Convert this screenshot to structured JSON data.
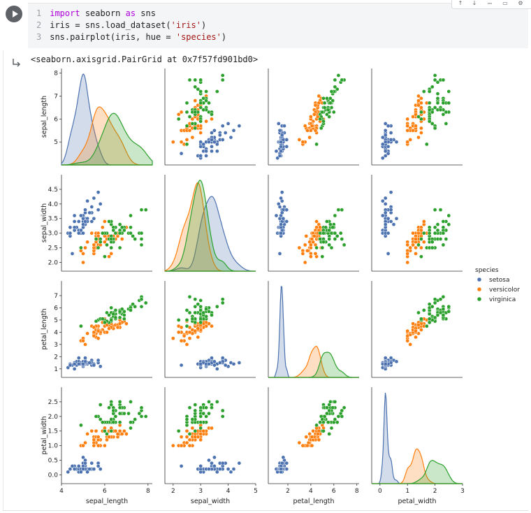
{
  "code": {
    "lines": [
      {
        "num": "1",
        "parts": [
          {
            "t": "import",
            "c": "kw"
          },
          {
            "t": " seaborn ",
            "c": ""
          },
          {
            "t": "as",
            "c": "kw"
          },
          {
            "t": " sns",
            "c": ""
          }
        ]
      },
      {
        "num": "2",
        "parts": [
          {
            "t": "iris = sns.load_dataset(",
            "c": ""
          },
          {
            "t": "'iris'",
            "c": "str"
          },
          {
            "t": ")",
            "c": ""
          }
        ]
      },
      {
        "num": "3",
        "parts": [
          {
            "t": "sns.pairplot(iris, hue = ",
            "c": ""
          },
          {
            "t": "'species'",
            "c": "str"
          },
          {
            "t": ")",
            "c": ""
          }
        ]
      }
    ]
  },
  "output": {
    "repr": "<seaborn.axisgrid.PairGrid at 0x7f57fd901bd0>"
  },
  "icons": {
    "run": "play-icon",
    "output": "output-arrow-icon",
    "toolbar": [
      "arrow-up-icon",
      "arrow-down-icon",
      "link-icon",
      "comment-icon",
      "settings-icon"
    ]
  },
  "chart_data": {
    "type": "scatter",
    "kind": "pairplot",
    "variables": [
      "sepal_length",
      "sepal_width",
      "petal_length",
      "petal_width"
    ],
    "diagonal": "kde",
    "legend": {
      "title": "species",
      "placement": "right",
      "entries": [
        "setosa",
        "versicolor",
        "virginica"
      ]
    },
    "colors": {
      "setosa": "#4c72b0",
      "versicolor": "#ff7f0e",
      "virginica": "#2ca02c"
    },
    "axes": {
      "sepal_length": {
        "ticks": [
          4,
          6,
          8
        ],
        "ylim_ticks": [
          5,
          6,
          7,
          8
        ],
        "range": [
          4.0,
          8.2
        ]
      },
      "sepal_width": {
        "ticks": [
          2,
          3,
          4,
          5
        ],
        "ylim_ticks": [
          2.0,
          2.5,
          3.0,
          3.5,
          4.0,
          4.5
        ],
        "range": [
          1.7,
          5.0
        ]
      },
      "petal_length": {
        "ticks": [
          2,
          4,
          6,
          8
        ],
        "ylim_ticks": [
          1,
          2,
          3,
          4,
          5,
          6,
          7
        ],
        "range": [
          0.3,
          8.2
        ]
      },
      "petal_width": {
        "ticks": [
          0,
          1,
          2,
          3
        ],
        "ylim_ticks": [
          0.0,
          0.5,
          1.0,
          1.5,
          2.0,
          2.5
        ],
        "range": [
          -0.3,
          3.0
        ]
      }
    },
    "ytick_labels": {
      "sepal_length": [
        "5",
        "6",
        "7",
        "8"
      ],
      "sepal_width": [
        "2.0",
        "2.5",
        "3.0",
        "3.5",
        "4.0",
        "4.5"
      ],
      "petal_length": [
        "1",
        "2",
        "3",
        "4",
        "5",
        "6",
        "7"
      ],
      "petal_width": [
        "0.0",
        "0.5",
        "1.0",
        "1.5",
        "2.0",
        "2.5"
      ]
    },
    "xtick_labels": {
      "sepal_length": [
        "4",
        "6",
        "8"
      ],
      "sepal_width": [
        "2",
        "3",
        "4",
        "5"
      ],
      "petal_length": [
        "2",
        "4",
        "6",
        "8"
      ],
      "petal_width": [
        "0",
        "1",
        "2",
        "3"
      ]
    },
    "series": [
      {
        "name": "setosa",
        "points": [
          [
            5.1,
            3.5,
            1.4,
            0.2
          ],
          [
            4.9,
            3.0,
            1.4,
            0.2
          ],
          [
            4.7,
            3.2,
            1.3,
            0.2
          ],
          [
            4.6,
            3.1,
            1.5,
            0.2
          ],
          [
            5.0,
            3.6,
            1.4,
            0.2
          ],
          [
            5.4,
            3.9,
            1.7,
            0.4
          ],
          [
            4.6,
            3.4,
            1.4,
            0.3
          ],
          [
            5.0,
            3.4,
            1.5,
            0.2
          ],
          [
            4.4,
            2.9,
            1.4,
            0.2
          ],
          [
            4.9,
            3.1,
            1.5,
            0.1
          ],
          [
            5.4,
            3.7,
            1.5,
            0.2
          ],
          [
            4.8,
            3.4,
            1.6,
            0.2
          ],
          [
            4.8,
            3.0,
            1.4,
            0.1
          ],
          [
            4.3,
            3.0,
            1.1,
            0.1
          ],
          [
            5.8,
            4.0,
            1.2,
            0.2
          ],
          [
            5.7,
            4.4,
            1.5,
            0.4
          ],
          [
            5.4,
            3.9,
            1.3,
            0.4
          ],
          [
            5.1,
            3.5,
            1.4,
            0.3
          ],
          [
            5.7,
            3.8,
            1.7,
            0.3
          ],
          [
            5.1,
            3.8,
            1.5,
            0.3
          ],
          [
            5.4,
            3.4,
            1.7,
            0.2
          ],
          [
            5.1,
            3.7,
            1.5,
            0.4
          ],
          [
            4.6,
            3.6,
            1.0,
            0.2
          ],
          [
            5.1,
            3.3,
            1.7,
            0.5
          ],
          [
            4.8,
            3.4,
            1.9,
            0.2
          ],
          [
            5.0,
            3.0,
            1.6,
            0.2
          ],
          [
            5.0,
            3.4,
            1.6,
            0.4
          ],
          [
            5.2,
            3.5,
            1.5,
            0.2
          ],
          [
            5.2,
            3.4,
            1.4,
            0.2
          ],
          [
            4.7,
            3.2,
            1.6,
            0.2
          ],
          [
            4.8,
            3.1,
            1.6,
            0.2
          ],
          [
            5.4,
            3.4,
            1.5,
            0.4
          ],
          [
            5.2,
            4.1,
            1.5,
            0.1
          ],
          [
            5.5,
            4.2,
            1.4,
            0.2
          ],
          [
            4.9,
            3.1,
            1.5,
            0.2
          ],
          [
            5.0,
            3.2,
            1.2,
            0.2
          ],
          [
            5.5,
            3.5,
            1.3,
            0.2
          ],
          [
            4.9,
            3.6,
            1.4,
            0.1
          ],
          [
            4.4,
            3.0,
            1.3,
            0.2
          ],
          [
            5.1,
            3.4,
            1.5,
            0.2
          ],
          [
            5.0,
            3.5,
            1.3,
            0.3
          ],
          [
            4.5,
            2.3,
            1.3,
            0.3
          ],
          [
            4.4,
            3.2,
            1.3,
            0.2
          ],
          [
            5.0,
            3.5,
            1.6,
            0.6
          ],
          [
            5.1,
            3.8,
            1.9,
            0.4
          ],
          [
            4.8,
            3.0,
            1.4,
            0.3
          ],
          [
            5.1,
            3.8,
            1.6,
            0.2
          ],
          [
            4.6,
            3.2,
            1.4,
            0.2
          ],
          [
            5.3,
            3.7,
            1.5,
            0.2
          ],
          [
            5.0,
            3.3,
            1.4,
            0.2
          ]
        ]
      },
      {
        "name": "versicolor",
        "points": [
          [
            7.0,
            3.2,
            4.7,
            1.4
          ],
          [
            6.4,
            3.2,
            4.5,
            1.5
          ],
          [
            6.9,
            3.1,
            4.9,
            1.5
          ],
          [
            5.5,
            2.3,
            4.0,
            1.3
          ],
          [
            6.5,
            2.8,
            4.6,
            1.5
          ],
          [
            5.7,
            2.8,
            4.5,
            1.3
          ],
          [
            6.3,
            3.3,
            4.7,
            1.6
          ],
          [
            4.9,
            2.4,
            3.3,
            1.0
          ],
          [
            6.6,
            2.9,
            4.6,
            1.3
          ],
          [
            5.2,
            2.7,
            3.9,
            1.4
          ],
          [
            5.0,
            2.0,
            3.5,
            1.0
          ],
          [
            5.9,
            3.0,
            4.2,
            1.5
          ],
          [
            6.0,
            2.2,
            4.0,
            1.0
          ],
          [
            6.1,
            2.9,
            4.7,
            1.4
          ],
          [
            5.6,
            2.9,
            3.6,
            1.3
          ],
          [
            6.7,
            3.1,
            4.4,
            1.4
          ],
          [
            5.6,
            3.0,
            4.5,
            1.5
          ],
          [
            5.8,
            2.7,
            4.1,
            1.0
          ],
          [
            6.2,
            2.2,
            4.5,
            1.5
          ],
          [
            5.6,
            2.5,
            3.9,
            1.1
          ],
          [
            5.9,
            3.2,
            4.8,
            1.8
          ],
          [
            6.1,
            2.8,
            4.0,
            1.3
          ],
          [
            6.3,
            2.5,
            4.9,
            1.5
          ],
          [
            6.1,
            2.8,
            4.7,
            1.2
          ],
          [
            6.4,
            2.9,
            4.3,
            1.3
          ],
          [
            6.6,
            3.0,
            4.4,
            1.4
          ],
          [
            6.8,
            2.8,
            4.8,
            1.4
          ],
          [
            6.7,
            3.0,
            5.0,
            1.7
          ],
          [
            6.0,
            2.9,
            4.5,
            1.5
          ],
          [
            5.7,
            2.6,
            3.5,
            1.0
          ],
          [
            5.5,
            2.4,
            3.8,
            1.1
          ],
          [
            5.5,
            2.4,
            3.7,
            1.0
          ],
          [
            5.8,
            2.7,
            3.9,
            1.2
          ],
          [
            6.0,
            2.7,
            5.1,
            1.6
          ],
          [
            5.4,
            3.0,
            4.5,
            1.5
          ],
          [
            6.0,
            3.4,
            4.5,
            1.6
          ],
          [
            6.7,
            3.1,
            4.7,
            1.5
          ],
          [
            6.3,
            2.3,
            4.4,
            1.3
          ],
          [
            5.6,
            3.0,
            4.1,
            1.3
          ],
          [
            5.5,
            2.5,
            4.0,
            1.3
          ],
          [
            5.5,
            2.6,
            4.4,
            1.2
          ],
          [
            6.1,
            3.0,
            4.6,
            1.4
          ],
          [
            5.8,
            2.6,
            4.0,
            1.2
          ],
          [
            5.0,
            2.3,
            3.3,
            1.0
          ],
          [
            5.6,
            2.7,
            4.2,
            1.3
          ],
          [
            5.7,
            3.0,
            4.2,
            1.2
          ],
          [
            5.7,
            2.9,
            4.2,
            1.3
          ],
          [
            6.2,
            2.9,
            4.3,
            1.3
          ],
          [
            5.1,
            2.5,
            3.0,
            1.1
          ],
          [
            5.7,
            2.8,
            4.1,
            1.3
          ]
        ]
      },
      {
        "name": "virginica",
        "points": [
          [
            6.3,
            3.3,
            6.0,
            2.5
          ],
          [
            5.8,
            2.7,
            5.1,
            1.9
          ],
          [
            7.1,
            3.0,
            5.9,
            2.1
          ],
          [
            6.3,
            2.9,
            5.6,
            1.8
          ],
          [
            6.5,
            3.0,
            5.8,
            2.2
          ],
          [
            7.6,
            3.0,
            6.6,
            2.1
          ],
          [
            4.9,
            2.5,
            4.5,
            1.7
          ],
          [
            7.3,
            2.9,
            6.3,
            1.8
          ],
          [
            6.7,
            2.5,
            5.8,
            1.8
          ],
          [
            7.2,
            3.6,
            6.1,
            2.5
          ],
          [
            6.5,
            3.2,
            5.1,
            2.0
          ],
          [
            6.4,
            2.7,
            5.3,
            1.9
          ],
          [
            6.8,
            3.0,
            5.5,
            2.1
          ],
          [
            5.7,
            2.5,
            5.0,
            2.0
          ],
          [
            5.8,
            2.8,
            5.1,
            2.4
          ],
          [
            6.4,
            3.2,
            5.3,
            2.3
          ],
          [
            6.5,
            3.0,
            5.5,
            1.8
          ],
          [
            7.7,
            3.8,
            6.7,
            2.2
          ],
          [
            7.7,
            2.6,
            6.9,
            2.3
          ],
          [
            6.0,
            2.2,
            5.0,
            1.5
          ],
          [
            6.9,
            3.2,
            5.7,
            2.3
          ],
          [
            5.6,
            2.8,
            4.9,
            2.0
          ],
          [
            7.7,
            2.8,
            6.7,
            2.0
          ],
          [
            6.3,
            2.7,
            4.9,
            1.8
          ],
          [
            6.7,
            3.3,
            5.7,
            2.1
          ],
          [
            7.2,
            3.2,
            6.0,
            1.8
          ],
          [
            6.2,
            2.8,
            4.8,
            1.8
          ],
          [
            6.1,
            3.0,
            4.9,
            1.8
          ],
          [
            6.4,
            2.8,
            5.6,
            2.1
          ],
          [
            7.2,
            3.0,
            5.8,
            1.6
          ],
          [
            7.4,
            2.8,
            6.1,
            1.9
          ],
          [
            7.9,
            3.8,
            6.4,
            2.0
          ],
          [
            6.4,
            2.8,
            5.6,
            2.2
          ],
          [
            6.3,
            2.8,
            5.1,
            1.5
          ],
          [
            6.1,
            2.6,
            5.6,
            1.4
          ],
          [
            7.7,
            3.0,
            6.1,
            2.3
          ],
          [
            6.3,
            3.4,
            5.6,
            2.4
          ],
          [
            6.4,
            3.1,
            5.5,
            1.8
          ],
          [
            6.0,
            3.0,
            4.8,
            1.8
          ],
          [
            6.9,
            3.1,
            5.4,
            2.1
          ],
          [
            6.7,
            3.1,
            5.6,
            2.4
          ],
          [
            6.9,
            3.1,
            5.1,
            2.3
          ],
          [
            5.8,
            2.7,
            5.1,
            1.9
          ],
          [
            6.8,
            3.2,
            5.9,
            2.3
          ],
          [
            6.7,
            3.3,
            5.7,
            2.5
          ],
          [
            6.7,
            3.0,
            5.2,
            2.3
          ],
          [
            6.3,
            2.5,
            5.0,
            1.9
          ],
          [
            6.5,
            3.0,
            5.2,
            2.0
          ],
          [
            6.2,
            3.4,
            5.4,
            2.3
          ],
          [
            5.9,
            3.0,
            5.1,
            1.8
          ]
        ]
      }
    ]
  }
}
